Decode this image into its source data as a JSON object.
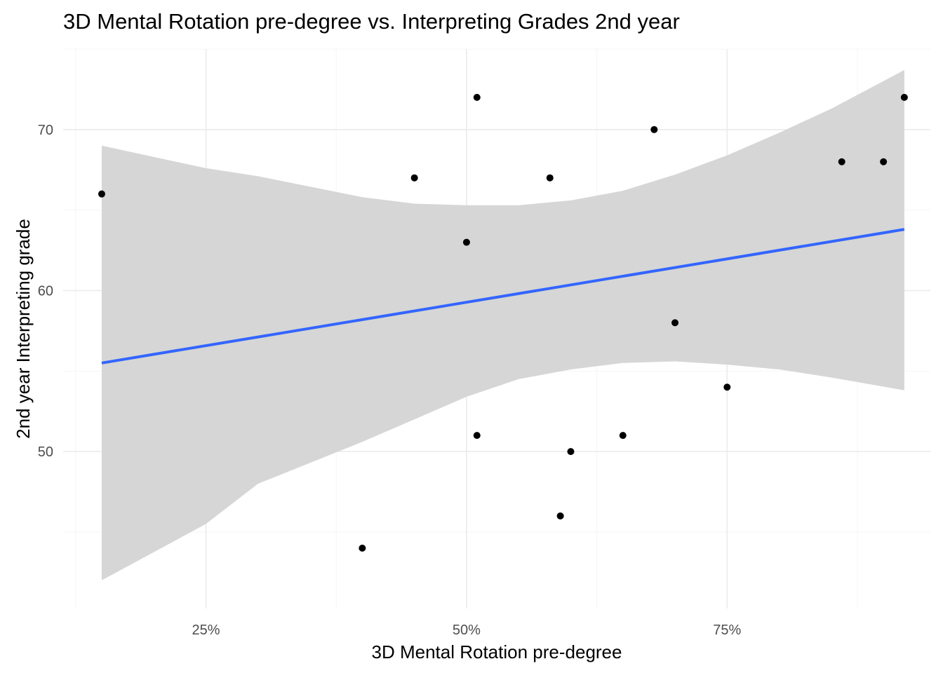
{
  "chart_data": {
    "type": "scatter",
    "title": "3D Mental Rotation pre-degree vs. Interpreting Grades 2nd year",
    "xlabel": "3D Mental Rotation pre-degree",
    "ylabel": "2nd year Interpreting grade",
    "x_format": "percent",
    "xlim": [
      0.113,
      0.945
    ],
    "ylim": [
      40.25,
      75.0
    ],
    "x_ticks": [
      0.25,
      0.5,
      0.75
    ],
    "x_tick_labels": [
      "25%",
      "50%",
      "75%"
    ],
    "x_minor_ticks": [
      0.125,
      0.375,
      0.625,
      0.875
    ],
    "y_ticks": [
      50,
      60,
      70
    ],
    "y_tick_labels": [
      "50",
      "60",
      "70"
    ],
    "y_minor_ticks": [
      45,
      55,
      65,
      75
    ],
    "grid": true,
    "points": [
      {
        "x": 0.15,
        "y": 66
      },
      {
        "x": 0.4,
        "y": 44
      },
      {
        "x": 0.45,
        "y": 67
      },
      {
        "x": 0.5,
        "y": 63
      },
      {
        "x": 0.51,
        "y": 72
      },
      {
        "x": 0.51,
        "y": 51
      },
      {
        "x": 0.58,
        "y": 67
      },
      {
        "x": 0.59,
        "y": 46
      },
      {
        "x": 0.6,
        "y": 50
      },
      {
        "x": 0.65,
        "y": 51
      },
      {
        "x": 0.68,
        "y": 70
      },
      {
        "x": 0.7,
        "y": 58
      },
      {
        "x": 0.75,
        "y": 54
      },
      {
        "x": 0.86,
        "y": 68
      },
      {
        "x": 0.9,
        "y": 68
      },
      {
        "x": 0.92,
        "y": 72
      }
    ],
    "trend_line": {
      "method": "lm",
      "x_start": 0.15,
      "y_start": 55.5,
      "x_end": 0.92,
      "y_end": 63.8
    },
    "confidence_band": [
      {
        "x": 0.15,
        "lower": 42.0,
        "upper": 69.0
      },
      {
        "x": 0.25,
        "lower": 45.5,
        "upper": 67.6
      },
      {
        "x": 0.3,
        "lower": 48.0,
        "upper": 67.1
      },
      {
        "x": 0.4,
        "lower": 50.6,
        "upper": 65.8
      },
      {
        "x": 0.45,
        "lower": 52.0,
        "upper": 65.4
      },
      {
        "x": 0.5,
        "lower": 53.4,
        "upper": 65.3
      },
      {
        "x": 0.55,
        "lower": 54.5,
        "upper": 65.3
      },
      {
        "x": 0.6,
        "lower": 55.1,
        "upper": 65.6
      },
      {
        "x": 0.65,
        "lower": 55.5,
        "upper": 66.2
      },
      {
        "x": 0.7,
        "lower": 55.6,
        "upper": 67.2
      },
      {
        "x": 0.75,
        "lower": 55.4,
        "upper": 68.4
      },
      {
        "x": 0.8,
        "lower": 55.1,
        "upper": 69.8
      },
      {
        "x": 0.85,
        "lower": 54.6,
        "upper": 71.3
      },
      {
        "x": 0.92,
        "lower": 53.8,
        "upper": 73.7
      }
    ],
    "colors": {
      "point": "#000000",
      "line": "#3366ff",
      "band": "#d6d6d6",
      "background": "#ffffff"
    }
  }
}
